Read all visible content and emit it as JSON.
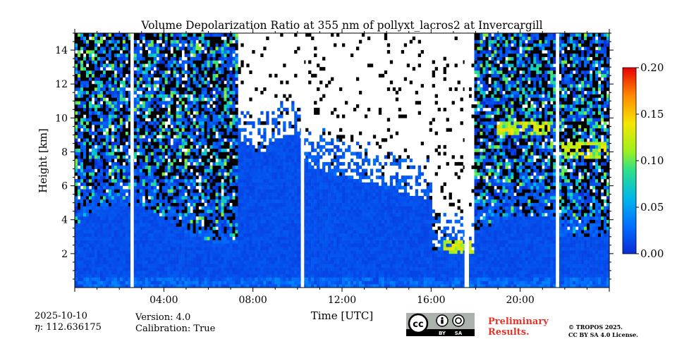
{
  "chart_data": {
    "type": "heatmap",
    "title": "Volume Depolarization Ratio at 355 nm of pollyxt_lacros2 at Invercargill",
    "xlabel": "Time [UTC]",
    "ylabel": "Height [km]",
    "x_range_hours": [
      0,
      24
    ],
    "y_range_km": [
      0,
      15
    ],
    "x_ticks": [
      "04:00",
      "08:00",
      "12:00",
      "16:00",
      "20:00"
    ],
    "x_tick_hours": [
      4,
      8,
      12,
      16,
      20
    ],
    "y_ticks": [
      "2",
      "4",
      "6",
      "8",
      "10",
      "12",
      "14"
    ],
    "y_tick_values": [
      2,
      4,
      6,
      8,
      10,
      12,
      14
    ],
    "colorbar": {
      "range": [
        0.0,
        0.2
      ],
      "tick_labels": [
        "0.00",
        "0.05",
        "0.10",
        "0.15",
        "0.20"
      ],
      "tick_values": [
        0.0,
        0.05,
        0.1,
        0.15,
        0.2
      ],
      "colormap": "jet"
    },
    "data_gaps_hours": [
      [
        2.5,
        2.65
      ],
      [
        10.15,
        10.3
      ],
      [
        17.5,
        17.7
      ],
      [
        21.6,
        21.75
      ]
    ],
    "cloud_layers": [
      {
        "t_start": 19.0,
        "t_end": 21.3,
        "h_bottom": 9.0,
        "h_top": 9.8,
        "value": 0.1
      },
      {
        "t_start": 21.8,
        "t_end": 24.0,
        "h_bottom": 7.7,
        "h_top": 8.6,
        "value": 0.1
      },
      {
        "t_start": 16.5,
        "t_end": 17.9,
        "h_bottom": 2.0,
        "h_top": 2.8,
        "value": 0.1
      }
    ],
    "background_value": 0.01
  },
  "info": {
    "date": "2025-10-10",
    "eta_label": "η",
    "eta_value": "112.636175",
    "version": "Version: 4.0",
    "calibration": "Calibration: True"
  },
  "preliminary": [
    "Preliminary",
    "Results."
  ],
  "copyright": [
    "© TROPOS 2025.",
    "CC BY SA 4.0 License."
  ],
  "license_badge": {
    "cc": "cc",
    "by": "BY",
    "sa": "SA"
  }
}
